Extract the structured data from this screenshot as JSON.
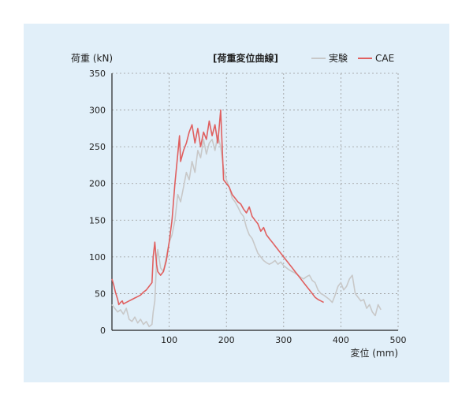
{
  "chart_data": {
    "type": "line",
    "title": "[荷重変位曲線]",
    "ylabel": "荷重 (kN)",
    "xlabel": "変位 (mm)",
    "xlim": [
      0,
      500
    ],
    "ylim": [
      0,
      350
    ],
    "xticks": [
      100,
      200,
      300,
      400,
      500
    ],
    "yticks": [
      0,
      50,
      100,
      150,
      200,
      250,
      300,
      350
    ],
    "grid": true,
    "legend_position": "top-right",
    "series": [
      {
        "name": "実験",
        "color": "#c8c8c8",
        "x": [
          0,
          5,
          10,
          15,
          20,
          25,
          30,
          35,
          40,
          45,
          50,
          55,
          60,
          65,
          70,
          72,
          75,
          78,
          80,
          85,
          90,
          95,
          100,
          105,
          110,
          115,
          120,
          125,
          130,
          135,
          140,
          145,
          150,
          155,
          160,
          165,
          170,
          175,
          180,
          185,
          190,
          195,
          200,
          205,
          210,
          215,
          220,
          225,
          230,
          235,
          240,
          245,
          250,
          255,
          260,
          265,
          270,
          275,
          280,
          285,
          290,
          295,
          300,
          305,
          310,
          315,
          320,
          325,
          330,
          335,
          340,
          345,
          350,
          355,
          360,
          365,
          370,
          375,
          380,
          385,
          390,
          395,
          400,
          405,
          410,
          415,
          420,
          425,
          430,
          435,
          440,
          445,
          450,
          455,
          460,
          465,
          470
        ],
        "y": [
          35,
          30,
          25,
          28,
          22,
          30,
          15,
          12,
          18,
          10,
          15,
          8,
          12,
          5,
          8,
          25,
          40,
          95,
          110,
          85,
          80,
          100,
          120,
          130,
          150,
          185,
          175,
          195,
          215,
          205,
          230,
          215,
          245,
          235,
          260,
          240,
          255,
          260,
          245,
          265,
          250,
          220,
          205,
          195,
          180,
          175,
          168,
          160,
          155,
          140,
          130,
          125,
          115,
          105,
          100,
          95,
          92,
          90,
          92,
          95,
          90,
          93,
          88,
          85,
          82,
          80,
          78,
          75,
          72,
          70,
          73,
          75,
          68,
          65,
          55,
          50,
          48,
          45,
          42,
          38,
          48,
          60,
          65,
          55,
          60,
          70,
          75,
          50,
          45,
          40,
          42,
          30,
          35,
          25,
          20,
          35,
          28
        ]
      },
      {
        "name": "CAE",
        "color": "#e06060",
        "x": [
          0,
          3,
          6,
          10,
          12,
          15,
          18,
          20,
          25,
          30,
          35,
          40,
          45,
          50,
          55,
          60,
          65,
          70,
          72,
          75,
          78,
          80,
          85,
          90,
          95,
          100,
          105,
          110,
          115,
          118,
          120,
          125,
          130,
          135,
          140,
          145,
          150,
          155,
          160,
          165,
          170,
          175,
          180,
          185,
          190,
          195,
          200,
          205,
          210,
          215,
          220,
          225,
          230,
          235,
          240,
          245,
          250,
          255,
          260,
          265,
          270,
          275,
          280,
          285,
          290,
          295,
          300,
          305,
          310,
          315,
          320,
          325,
          330,
          335,
          340,
          345,
          350,
          355,
          360,
          365,
          370
        ],
        "y": [
          70,
          62,
          52,
          42,
          35,
          38,
          40,
          36,
          38,
          40,
          42,
          44,
          46,
          48,
          52,
          55,
          60,
          65,
          100,
          120,
          90,
          80,
          75,
          80,
          95,
          120,
          150,
          200,
          240,
          265,
          230,
          245,
          255,
          270,
          280,
          255,
          275,
          250,
          270,
          260,
          285,
          265,
          280,
          255,
          300,
          205,
          200,
          195,
          185,
          180,
          175,
          172,
          165,
          160,
          168,
          155,
          150,
          145,
          135,
          140,
          130,
          125,
          120,
          115,
          110,
          105,
          100,
          95,
          90,
          85,
          80,
          75,
          70,
          65,
          60,
          55,
          50,
          45,
          42,
          40,
          38
        ]
      }
    ]
  }
}
